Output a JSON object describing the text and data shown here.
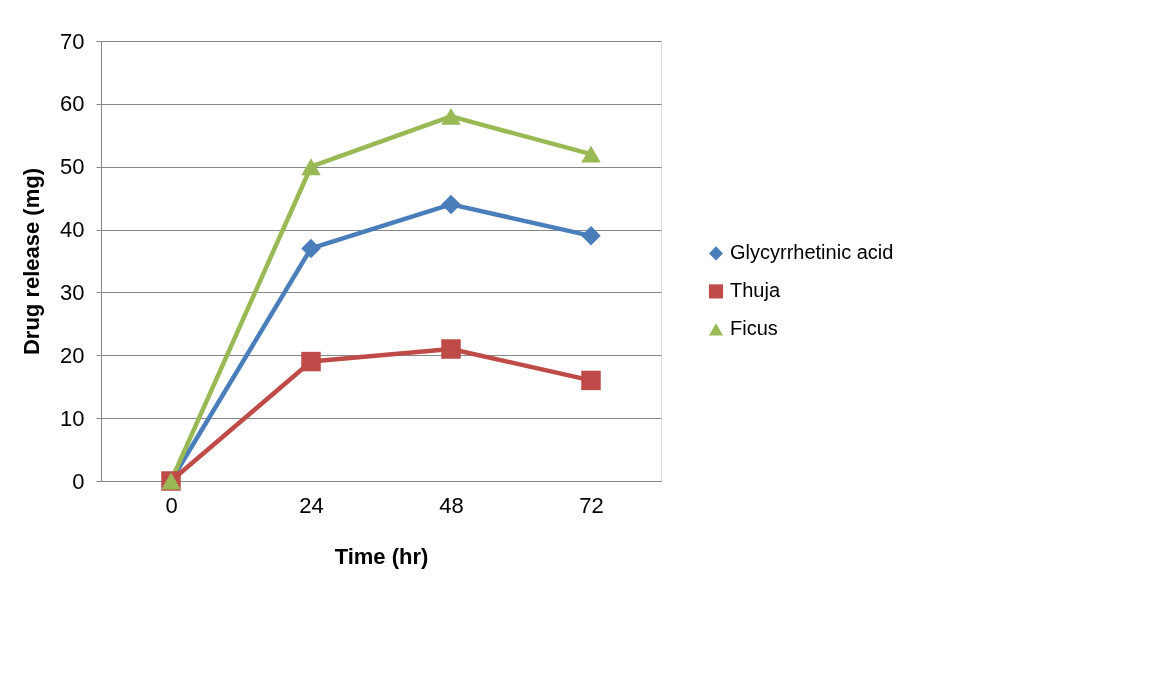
{
  "chart_data": {
    "type": "line",
    "xlabel": "Time (hr)",
    "ylabel": "Drug release (mg)",
    "categories": [
      "0",
      "24",
      "48",
      "72"
    ],
    "series": [
      {
        "name": "Glycyrrhetinic acid",
        "color": "#4a7ebb",
        "marker": "diamond",
        "values": [
          0,
          37,
          44,
          39
        ]
      },
      {
        "name": "Thuja",
        "color": "#be4b48",
        "marker": "square",
        "values": [
          0,
          19,
          21,
          16
        ]
      },
      {
        "name": "Ficus",
        "color": "#98b954",
        "marker": "triangle",
        "values": [
          0,
          50,
          58,
          52
        ]
      }
    ],
    "ylim": [
      0,
      70
    ],
    "yticks": [
      0,
      10,
      20,
      30,
      40,
      50,
      60,
      70
    ],
    "grid": "y",
    "legend": "right",
    "line_style": "solid"
  }
}
